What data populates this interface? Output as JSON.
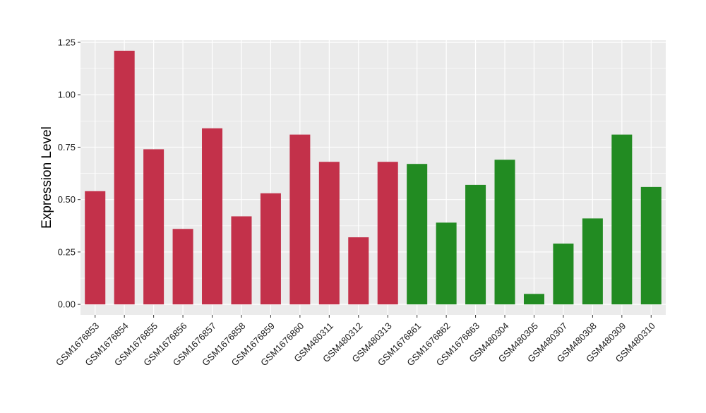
{
  "chart_data": {
    "type": "bar",
    "title": "",
    "xlabel": "",
    "ylabel": "Expression Level",
    "ylim": [
      -0.05,
      1.25
    ],
    "yticks": [
      "0.00",
      "0.25",
      "0.50",
      "0.75",
      "1.00",
      "1.25"
    ],
    "ytick_values": [
      0,
      0.25,
      0.5,
      0.75,
      1.0,
      1.25
    ],
    "grid": true,
    "legend": "none",
    "colors": {
      "group_1": "#C3314A",
      "group_2": "#228B22",
      "panel": "#EBEBEB",
      "gridline": "#FFFFFF"
    },
    "categories": [
      "GSM1676853",
      "GSM1676854",
      "GSM1676855",
      "GSM1676856",
      "GSM1676857",
      "GSM1676858",
      "GSM1676859",
      "GSM1676860",
      "GSM480311",
      "GSM480312",
      "GSM480313",
      "GSM1676861",
      "GSM1676862",
      "GSM1676863",
      "GSM480304",
      "GSM480305",
      "GSM480307",
      "GSM480308",
      "GSM480309",
      "GSM480310"
    ],
    "values": [
      0.54,
      1.21,
      0.74,
      0.36,
      0.84,
      0.42,
      0.53,
      0.81,
      0.68,
      0.32,
      0.68,
      0.67,
      0.39,
      0.57,
      0.69,
      0.05,
      0.29,
      0.41,
      0.81,
      0.56
    ],
    "groups": [
      1,
      1,
      1,
      1,
      1,
      1,
      1,
      1,
      1,
      1,
      1,
      2,
      2,
      2,
      2,
      2,
      2,
      2,
      2,
      2
    ]
  }
}
